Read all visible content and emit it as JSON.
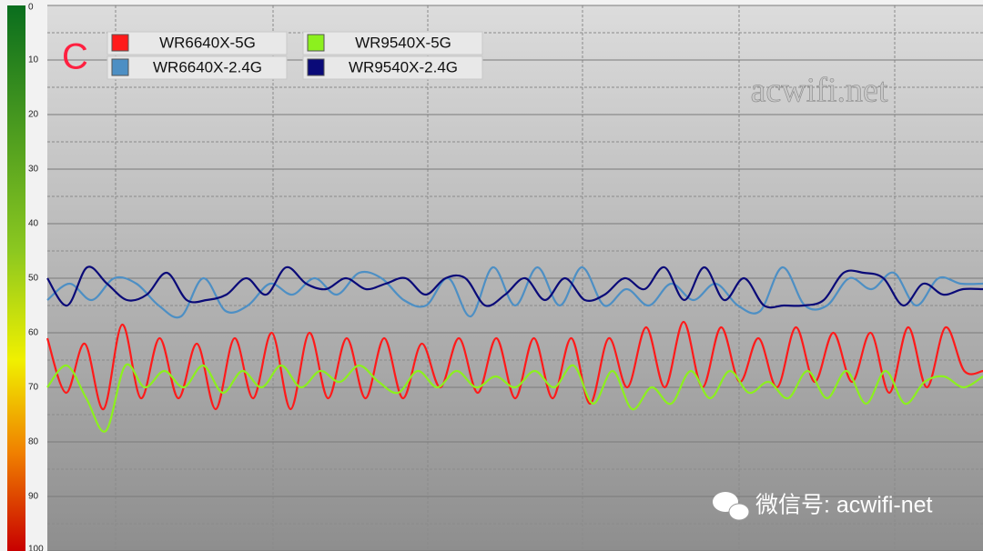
{
  "chart_data": {
    "type": "line",
    "annotation": "C",
    "watermark": "acwifi.net",
    "footer": "微信号: acwifi-net",
    "ylim": [
      100,
      0
    ],
    "yticks": [
      0,
      10,
      20,
      30,
      40,
      50,
      60,
      70,
      80,
      90,
      100
    ],
    "grid": true,
    "legend": "top-left",
    "series": [
      {
        "name": "WR6640X-5G",
        "color": "#ff1a1a",
        "values": [
          61,
          71,
          62,
          74,
          58.5,
          72,
          61,
          72,
          62,
          74,
          61,
          72,
          60,
          74,
          60,
          72,
          61,
          72,
          61,
          72,
          62,
          70,
          61,
          71,
          61,
          72,
          61,
          72,
          61,
          73,
          61,
          70,
          59,
          70,
          58,
          70,
          59,
          69,
          61,
          70,
          59,
          69,
          60,
          69,
          60,
          71,
          59,
          70,
          59,
          67,
          67
        ]
      },
      {
        "name": "WR6640X-2.4G",
        "color": "#4d8fc4",
        "values": [
          54,
          51,
          54,
          50,
          51,
          55,
          57,
          50,
          56,
          55,
          51,
          53,
          50,
          53,
          49,
          50,
          54,
          55,
          50,
          57,
          48,
          55,
          48,
          55,
          48,
          55,
          52,
          55,
          51,
          54,
          51,
          55,
          56,
          48,
          55,
          55,
          50,
          52,
          49,
          55,
          50,
          51,
          51
        ]
      },
      {
        "name": "WR9540X-5G",
        "color": "#8cf01e",
        "values": [
          70,
          66,
          72,
          78,
          66,
          70,
          67,
          70,
          66,
          71,
          67,
          70,
          66,
          70,
          67,
          69,
          66,
          69,
          71,
          67,
          70,
          67,
          70,
          68,
          70,
          67,
          70,
          66,
          73,
          67,
          74,
          70,
          73,
          67,
          72,
          67,
          71,
          69,
          72,
          67,
          72,
          67,
          73,
          67,
          73,
          69,
          68,
          70,
          68
        ]
      },
      {
        "name": "WR9540X-2.4G",
        "color": "#0a0a78",
        "values": [
          50,
          55,
          48,
          51,
          54,
          53,
          49,
          54,
          54,
          53,
          50,
          53,
          48,
          51,
          52,
          50,
          52,
          51,
          50,
          53,
          50,
          50,
          55,
          53,
          50,
          54,
          50,
          54,
          53,
          50,
          52,
          48,
          54,
          48,
          54,
          50,
          55,
          55,
          55,
          54,
          49,
          49,
          50,
          55,
          51,
          53,
          52,
          52
        ]
      }
    ]
  }
}
